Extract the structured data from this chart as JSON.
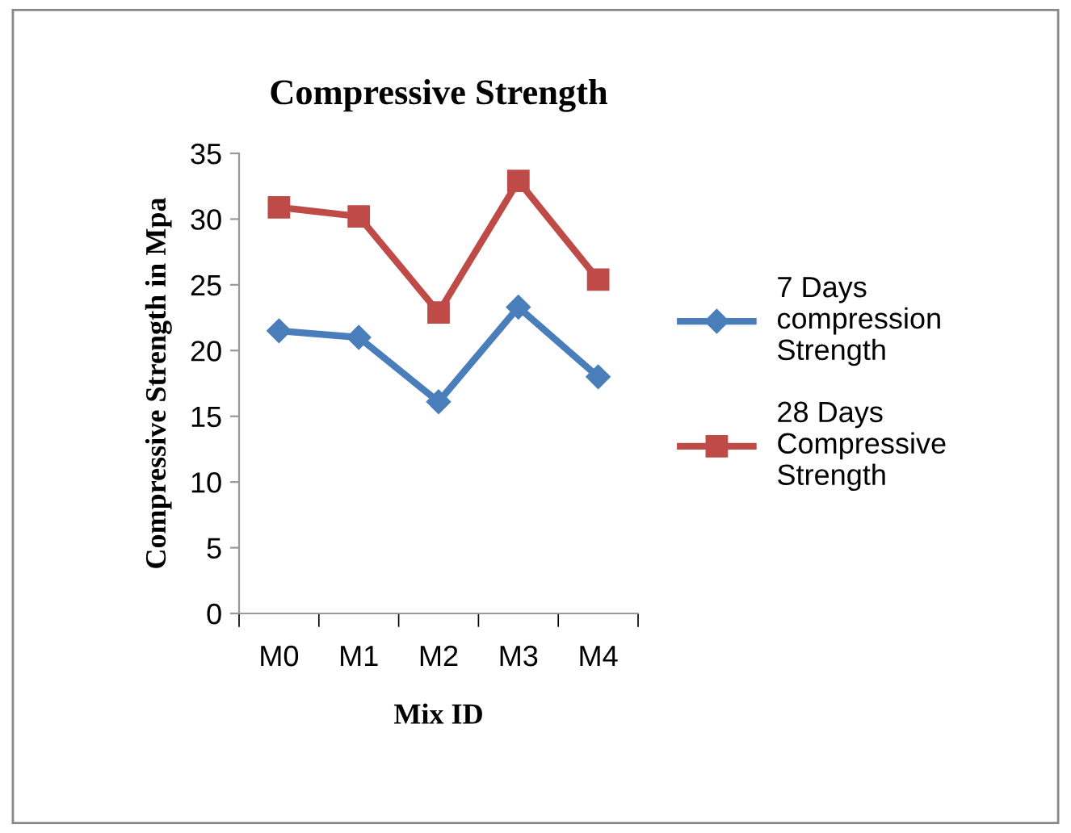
{
  "chart_data": {
    "type": "line",
    "title": "Compressive Strength",
    "xlabel": "Mix ID",
    "ylabel": "Compressive Strength in Mpa",
    "categories": [
      "M0",
      "M1",
      "M2",
      "M3",
      "M4"
    ],
    "series": [
      {
        "name": "7 Days\ncompression\nStrength",
        "color": "#4a7ebb",
        "marker": "diamond",
        "values": [
          21.5,
          21.0,
          16.1,
          23.3,
          18.0
        ]
      },
      {
        "name": "28 Days\nCompressive\nStrength",
        "color": "#be4b48",
        "marker": "square",
        "values": [
          30.9,
          30.2,
          22.9,
          32.9,
          25.4
        ]
      }
    ],
    "ylim": [
      0,
      35
    ],
    "yticks": [
      0,
      5,
      10,
      15,
      20,
      25,
      30,
      35
    ],
    "legend": "right",
    "grid": false,
    "line_style": "solid"
  }
}
